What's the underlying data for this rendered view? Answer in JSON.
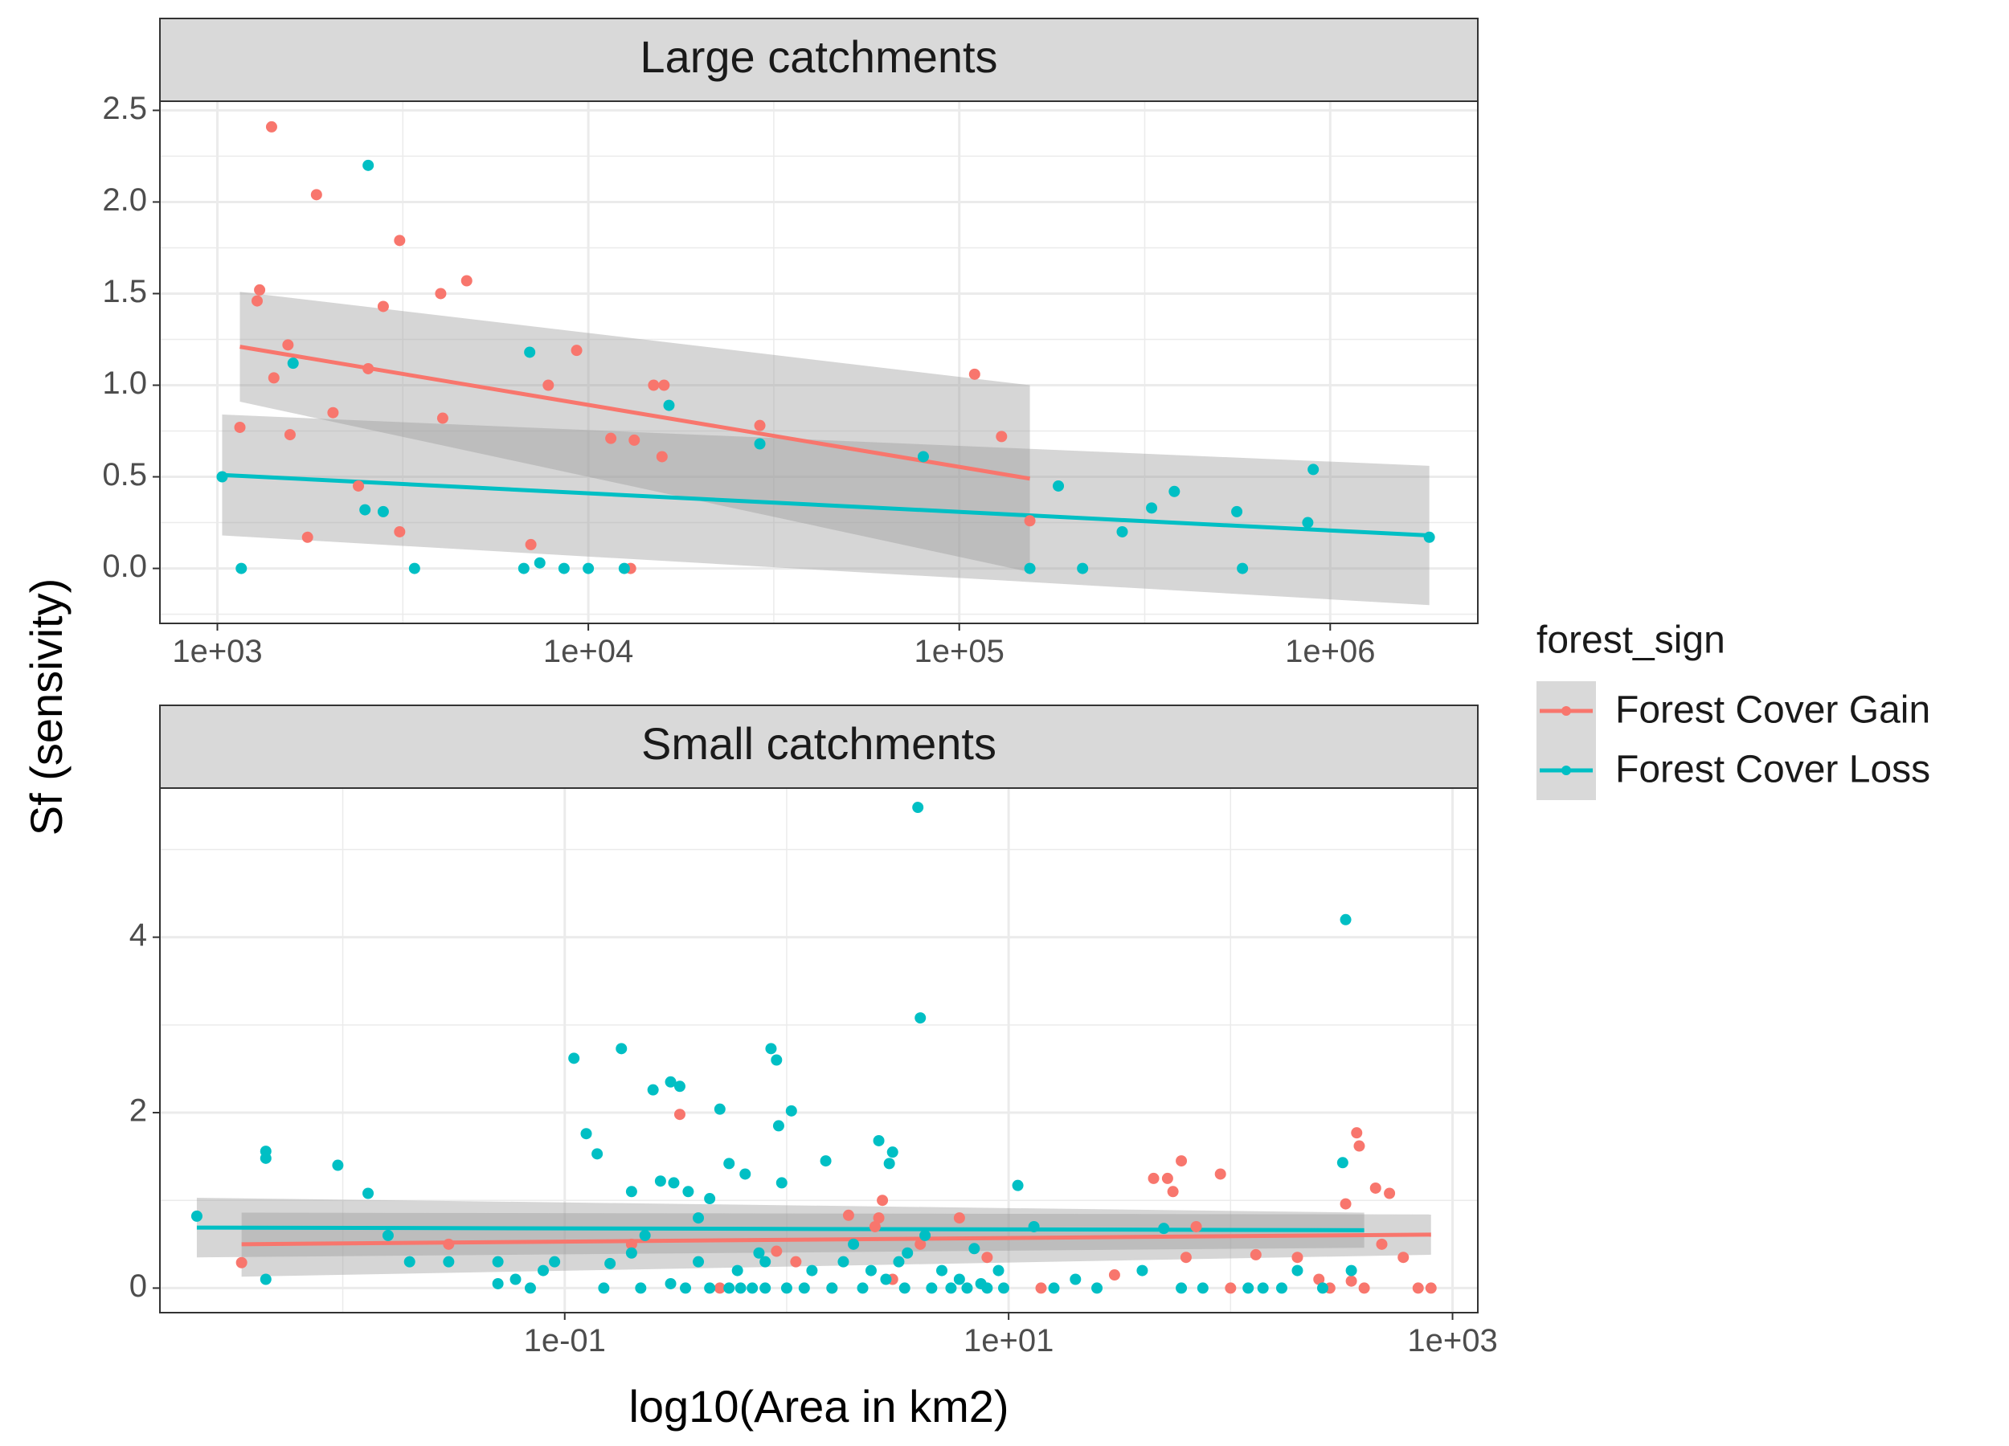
{
  "figure": {
    "ylabel": "Sf (sensivity)",
    "xlabel": "log10(Area in km2)"
  },
  "legend": {
    "title": "forest_sign",
    "items": [
      {
        "label": "Forest Cover Gain",
        "color": "#F8766D"
      },
      {
        "label": "Forest Cover Loss",
        "color": "#00BFC4"
      }
    ],
    "position": "right"
  },
  "chart_data": [
    {
      "type": "scatter",
      "title": "Large catchments",
      "x_scale": "log10",
      "xlim": [
        700,
        2500000
      ],
      "ylim": [
        -0.3,
        2.55
      ],
      "x_ticks": [
        1000,
        10000,
        100000,
        1000000
      ],
      "x_tick_labels": [
        "1e+03",
        "1e+04",
        "1e+05",
        "1e+06"
      ],
      "y_ticks": [
        0,
        0.5,
        1,
        1.5,
        2,
        2.5
      ],
      "y_tick_labels": [
        "0.0",
        "0.5",
        "1.0",
        "1.5",
        "2.0",
        "2.5"
      ],
      "grid": true,
      "series": [
        {
          "name": "Forest Cover Gain",
          "color": "#F8766D",
          "points": [
            [
              1400,
              2.41
            ],
            [
              1850,
              2.04
            ],
            [
              3100,
              1.79
            ],
            [
              1300,
              1.52
            ],
            [
              1280,
              1.46
            ],
            [
              2800,
              1.43
            ],
            [
              4700,
              1.57
            ],
            [
              4000,
              1.5
            ],
            [
              9300,
              1.19
            ],
            [
              1550,
              1.22
            ],
            [
              1420,
              1.04
            ],
            [
              2550,
              1.09
            ],
            [
              7800,
              1.0
            ],
            [
              15000,
              1.0
            ],
            [
              16000,
              1.0
            ],
            [
              110000,
              1.06
            ],
            [
              2050,
              0.85
            ],
            [
              4050,
              0.82
            ],
            [
              1150,
              0.77
            ],
            [
              1570,
              0.73
            ],
            [
              11500,
              0.71
            ],
            [
              13300,
              0.7
            ],
            [
              29000,
              0.78
            ],
            [
              15800,
              0.61
            ],
            [
              130000,
              0.72
            ],
            [
              2400,
              0.45
            ],
            [
              1750,
              0.17
            ],
            [
              3100,
              0.2
            ],
            [
              7000,
              0.13
            ],
            [
              13000,
              0.0
            ],
            [
              155000,
              0.26
            ]
          ]
        },
        {
          "name": "Forest Cover Loss",
          "color": "#00BFC4",
          "points": [
            [
              2550,
              2.2
            ],
            [
              1600,
              1.12
            ],
            [
              6950,
              1.18
            ],
            [
              16500,
              0.89
            ],
            [
              29000,
              0.68
            ],
            [
              80000,
              0.61
            ],
            [
              185000,
              0.45
            ],
            [
              2500,
              0.32
            ],
            [
              2800,
              0.31
            ],
            [
              330000,
              0.33
            ],
            [
              380000,
              0.42
            ],
            [
              560000,
              0.31
            ],
            [
              900000,
              0.54
            ],
            [
              870000,
              0.25
            ],
            [
              275000,
              0.2
            ],
            [
              1850000,
              0.17
            ],
            [
              1030,
              0.5
            ],
            [
              1160,
              0.0
            ],
            [
              3400,
              0.0
            ],
            [
              6700,
              0.0
            ],
            [
              7400,
              0.03
            ],
            [
              8600,
              0.0
            ],
            [
              10000,
              0.0
            ],
            [
              12500,
              0.0
            ],
            [
              155000,
              0.0
            ],
            [
              215000,
              0.0
            ],
            [
              580000,
              0.0
            ]
          ]
        }
      ],
      "trend_lines": [
        {
          "series": "Forest Cover Gain",
          "x": [
            1150,
            155000
          ],
          "y": [
            1.21,
            0.49
          ],
          "ci_lower": [
            0.91,
            -0.02
          ],
          "ci_upper": [
            1.51,
            1.0
          ]
        },
        {
          "series": "Forest Cover Loss",
          "x": [
            1030,
            1850000
          ],
          "y": [
            0.51,
            0.18
          ],
          "ci_lower": [
            0.18,
            -0.2
          ],
          "ci_upper": [
            0.84,
            0.56
          ]
        }
      ]
    },
    {
      "type": "scatter",
      "title": "Small catchments",
      "x_scale": "log10",
      "xlim": [
        0.0015,
        1300
      ],
      "ylim": [
        -0.28,
        5.7
      ],
      "x_ticks": [
        0.1,
        10,
        1000
      ],
      "x_tick_labels": [
        "1e-01",
        "1e+01",
        "1e+03"
      ],
      "y_ticks": [
        0,
        2,
        4
      ],
      "y_tick_labels": [
        "0",
        "2",
        "4"
      ],
      "grid": true,
      "series": [
        {
          "name": "Forest Cover Gain",
          "color": "#F8766D",
          "points": [
            [
              0.0035,
              0.29
            ],
            [
              0.03,
              0.5
            ],
            [
              0.33,
              1.98
            ],
            [
              0.2,
              0.5
            ],
            [
              0.5,
              0.0
            ],
            [
              0.9,
              0.42
            ],
            [
              1.1,
              0.3
            ],
            [
              1.6,
              0.0
            ],
            [
              1.9,
              0.83
            ],
            [
              2.5,
              0.7
            ],
            [
              2.6,
              0.8
            ],
            [
              2.7,
              1.0
            ],
            [
              3.0,
              0.1
            ],
            [
              4.0,
              0.5
            ],
            [
              6.0,
              0.8
            ],
            [
              8.0,
              0.35
            ],
            [
              14.0,
              0.0
            ],
            [
              30.0,
              0.15
            ],
            [
              45.0,
              1.25
            ],
            [
              52.0,
              1.25
            ],
            [
              55.0,
              1.1
            ],
            [
              60.0,
              1.45
            ],
            [
              63.0,
              0.35
            ],
            [
              70.0,
              0.7
            ],
            [
              90.0,
              1.3
            ],
            [
              100.0,
              0.0
            ],
            [
              130.0,
              0.38
            ],
            [
              200.0,
              0.35
            ],
            [
              280.0,
              0.0
            ],
            [
              330.0,
              0.96
            ],
            [
              380.0,
              1.62
            ],
            [
              370.0,
              1.77
            ],
            [
              350.0,
              0.08
            ],
            [
              400.0,
              0.0
            ],
            [
              450.0,
              1.14
            ],
            [
              520.0,
              1.08
            ],
            [
              480.0,
              0.5
            ],
            [
              600.0,
              0.35
            ],
            [
              700.0,
              0.0
            ],
            [
              800.0,
              0.0
            ],
            [
              250.0,
              0.1
            ]
          ]
        },
        {
          "name": "Forest Cover Loss",
          "color": "#00BFC4",
          "points": [
            [
              0.0022,
              0.82
            ],
            [
              0.0045,
              1.56
            ],
            [
              0.0045,
              1.48
            ],
            [
              0.0045,
              0.1
            ],
            [
              0.0095,
              1.4
            ],
            [
              0.013,
              1.08
            ],
            [
              0.016,
              0.6
            ],
            [
              0.02,
              0.3
            ],
            [
              0.03,
              0.3
            ],
            [
              0.05,
              0.3
            ],
            [
              0.06,
              0.1
            ],
            [
              0.08,
              0.2
            ],
            [
              0.09,
              0.3
            ],
            [
              0.11,
              2.62
            ],
            [
              0.125,
              1.76
            ],
            [
              0.14,
              1.53
            ],
            [
              0.16,
              0.28
            ],
            [
              0.18,
              2.73
            ],
            [
              0.2,
              1.1
            ],
            [
              0.23,
              0.6
            ],
            [
              0.25,
              2.26
            ],
            [
              0.27,
              1.22
            ],
            [
              0.3,
              2.35
            ],
            [
              0.31,
              1.2
            ],
            [
              0.33,
              2.3
            ],
            [
              0.36,
              1.1
            ],
            [
              0.4,
              0.8
            ],
            [
              0.45,
              1.02
            ],
            [
              0.5,
              2.04
            ],
            [
              0.55,
              1.42
            ],
            [
              0.65,
              1.3
            ],
            [
              0.75,
              0.4
            ],
            [
              0.85,
              2.73
            ],
            [
              0.9,
              2.6
            ],
            [
              0.92,
              1.85
            ],
            [
              0.95,
              1.2
            ],
            [
              1.05,
              2.02
            ],
            [
              1.5,
              1.45
            ],
            [
              2.0,
              0.5
            ],
            [
              2.6,
              1.68
            ],
            [
              2.9,
              1.42
            ],
            [
              3.0,
              1.55
            ],
            [
              3.5,
              0.4
            ],
            [
              3.9,
              5.48
            ],
            [
              4.0,
              3.08
            ],
            [
              4.2,
              0.6
            ],
            [
              5.0,
              0.2
            ],
            [
              6.0,
              0.1
            ],
            [
              7.0,
              0.45
            ],
            [
              8.0,
              0.0
            ],
            [
              9.0,
              0.2
            ],
            [
              11.0,
              1.17
            ],
            [
              13.0,
              0.7
            ],
            [
              20.0,
              0.1
            ],
            [
              40.0,
              0.2
            ],
            [
              50.0,
              0.68
            ],
            [
              120.0,
              0.0
            ],
            [
              140.0,
              0.0
            ],
            [
              200.0,
              0.2
            ],
            [
              320.0,
              1.43
            ],
            [
              330.0,
              4.2
            ],
            [
              350.0,
              0.2
            ],
            [
              0.05,
              0.05
            ],
            [
              0.07,
              0.0
            ],
            [
              0.15,
              0.0
            ],
            [
              0.22,
              0.0
            ],
            [
              0.3,
              0.05
            ],
            [
              0.35,
              0.0
            ],
            [
              0.45,
              0.0
            ],
            [
              0.55,
              0.0
            ],
            [
              0.62,
              0.0
            ],
            [
              0.7,
              0.0
            ],
            [
              0.8,
              0.0
            ],
            [
              1.0,
              0.0
            ],
            [
              1.2,
              0.0
            ],
            [
              1.6,
              0.0
            ],
            [
              2.2,
              0.0
            ],
            [
              2.8,
              0.1
            ],
            [
              3.4,
              0.0
            ],
            [
              4.5,
              0.0
            ],
            [
              5.5,
              0.0
            ],
            [
              6.5,
              0.0
            ],
            [
              7.5,
              0.05
            ],
            [
              9.5,
              0.0
            ],
            [
              16.0,
              0.0
            ],
            [
              25.0,
              0.0
            ],
            [
              60.0,
              0.0
            ],
            [
              75.0,
              0.0
            ],
            [
              170.0,
              0.0
            ],
            [
              260.0,
              0.0
            ],
            [
              0.2,
              0.4
            ],
            [
              0.4,
              0.3
            ],
            [
              0.6,
              0.2
            ],
            [
              0.8,
              0.3
            ],
            [
              1.3,
              0.2
            ],
            [
              1.8,
              0.3
            ],
            [
              2.4,
              0.2
            ],
            [
              3.2,
              0.3
            ]
          ]
        }
      ],
      "trend_lines": [
        {
          "series": "Forest Cover Gain",
          "x": [
            0.0035,
            800
          ],
          "y": [
            0.5,
            0.61
          ],
          "ci_lower": [
            0.13,
            0.38
          ],
          "ci_upper": [
            0.86,
            0.84
          ]
        },
        {
          "series": "Forest Cover Loss",
          "x": [
            0.0022,
            400
          ],
          "y": [
            0.69,
            0.66
          ],
          "ci_lower": [
            0.35,
            0.46
          ],
          "ci_upper": [
            1.03,
            0.86
          ]
        }
      ]
    }
  ]
}
